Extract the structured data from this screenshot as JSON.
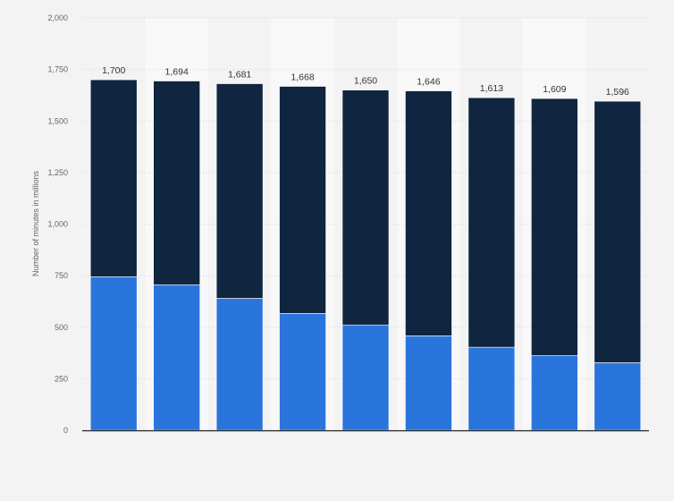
{
  "chart_data": {
    "type": "bar",
    "stacked": true,
    "categories": [
      "",
      "",
      "",
      "",
      "",
      "",
      "",
      "",
      ""
    ],
    "series": [
      {
        "values": [
          745,
          706,
          640,
          567,
          511,
          458,
          403,
          362,
          328
        ],
        "color": "#2a75dc"
      },
      {
        "values": [
          955,
          988,
          1041,
          1101,
          1139,
          1188,
          1210,
          1247,
          1268
        ],
        "color": "#0f2540"
      }
    ],
    "totals": [
      "1,700",
      "1,694",
      "1,681",
      "1,668",
      "1,650",
      "1,646",
      "1,613",
      "1,609",
      "1,596"
    ],
    "title": "",
    "xlabel": "",
    "ylabel": "Number of minutes in millions",
    "ylim": [
      0,
      2000
    ],
    "yticks": [
      {
        "value": 0,
        "label": "0"
      },
      {
        "value": 250,
        "label": "250"
      },
      {
        "value": 500,
        "label": "500"
      },
      {
        "value": 750,
        "label": "750"
      },
      {
        "value": 1000,
        "label": "1,000"
      },
      {
        "value": 1250,
        "label": "1,250"
      },
      {
        "value": 1500,
        "label": "1,500"
      },
      {
        "value": 1750,
        "label": "1,750"
      },
      {
        "value": 2000,
        "label": "2,000"
      }
    ],
    "grid": true,
    "legend": "none"
  }
}
